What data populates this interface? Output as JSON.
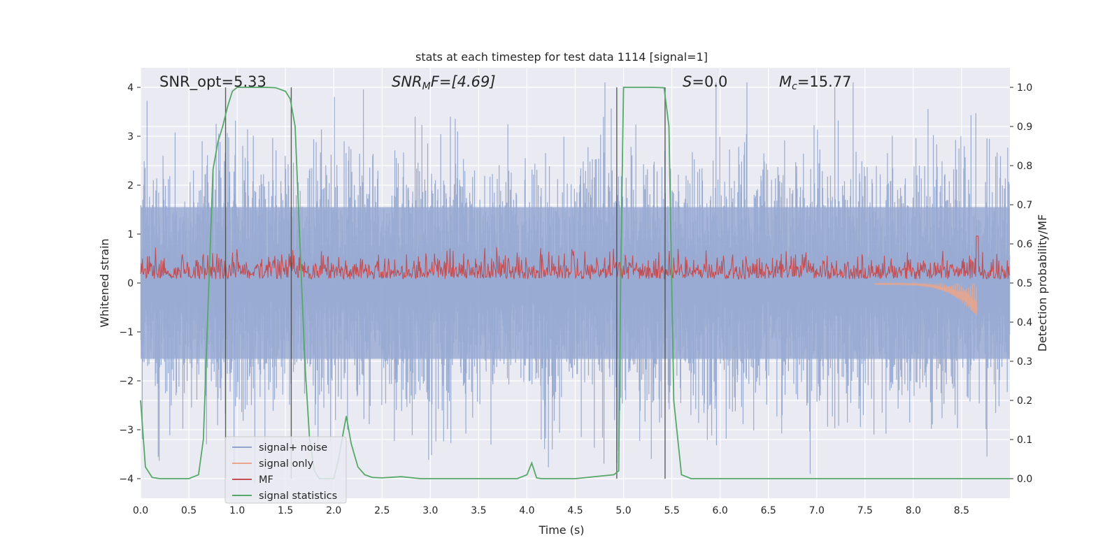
{
  "chart_data": {
    "type": "line",
    "title": "stats at each timestep for test data 1114 [signal=1]",
    "xlabel": "Time (s)",
    "ylabel_left": "Whitened strain",
    "ylabel_right": "Detection probability/MF",
    "xlim": [
      0,
      9.0
    ],
    "ylim_left": [
      -4.4,
      4.4
    ],
    "ylim_right": [
      -0.05,
      1.05
    ],
    "x_ticks": [
      "0.0",
      "0.5",
      "1.0",
      "1.5",
      "2.0",
      "2.5",
      "3.0",
      "3.5",
      "4.0",
      "4.5",
      "5.0",
      "5.5",
      "6.0",
      "6.5",
      "7.0",
      "7.5",
      "8.0",
      "8.5"
    ],
    "y_ticks_left": [
      "−4",
      "−3",
      "−2",
      "−1",
      "0",
      "1",
      "2",
      "3",
      "4"
    ],
    "y_ticks_right": [
      "0.0",
      "0.1",
      "0.2",
      "0.3",
      "0.4",
      "0.5",
      "0.6",
      "0.7",
      "0.8",
      "0.9",
      "1.0"
    ],
    "grid": true,
    "legend_location": "lower-left",
    "annotations": {
      "snr_opt": "SNR_opt=5.33",
      "snr_mf_main": "SNR",
      "snr_mf_sub": "M",
      "snr_mf_rest": "F=[4.69]",
      "s_main": "S",
      "s_rest": "=0.0",
      "mc_main": "M",
      "mc_sub": "c",
      "mc_rest": "=15.77"
    },
    "series": [
      {
        "name": "signal+ noise",
        "color": "#8fa3cc",
        "description_level": "noise band about ±1.6 with spikes up to ±4"
      },
      {
        "name": "signal only",
        "color": "#e8a58c",
        "chirp_end_time": 8.66,
        "chirp_min": -1.15
      },
      {
        "name": "MF",
        "color": "#c44e52",
        "baseline": 0.5,
        "peak_time": 8.66,
        "peak_value": 0.62
      },
      {
        "name": "signal statistics",
        "color": "#55a868",
        "x": [
          0.0,
          0.05,
          0.12,
          0.2,
          0.3,
          0.4,
          0.5,
          0.6,
          0.65,
          0.7,
          0.75,
          0.8,
          0.85,
          0.9,
          0.95,
          1.0,
          1.1,
          1.2,
          1.3,
          1.4,
          1.5,
          1.55,
          1.6,
          1.65,
          1.7,
          1.75,
          1.8,
          1.85,
          1.9,
          2.0,
          2.05,
          2.1,
          2.13,
          2.18,
          2.25,
          2.32,
          2.4,
          2.5,
          2.7,
          2.9,
          3.5,
          3.9,
          4.0,
          4.05,
          4.1,
          4.15,
          4.5,
          4.9,
          4.95,
          4.97,
          5.0,
          5.1,
          5.2,
          5.3,
          5.42,
          5.47,
          5.52,
          5.6,
          5.7,
          6.0,
          7.0,
          8.0,
          9.0
        ],
        "y": [
          0.2,
          0.03,
          0.003,
          0.0,
          0.0,
          0.0,
          0.0,
          0.01,
          0.1,
          0.45,
          0.79,
          0.86,
          0.9,
          0.95,
          0.99,
          1.0,
          1.0,
          1.0,
          1.0,
          0.999,
          0.99,
          0.97,
          0.9,
          0.6,
          0.3,
          0.1,
          0.02,
          0.0,
          0.0,
          0.0,
          0.05,
          0.12,
          0.16,
          0.09,
          0.03,
          0.01,
          0.003,
          0.002,
          0.005,
          0.0,
          0.0,
          0.0,
          0.01,
          0.04,
          0.002,
          0.0,
          0.0,
          0.01,
          0.02,
          0.5,
          1.0,
          1.0,
          1.0,
          1.0,
          0.999,
          0.9,
          0.2,
          0.01,
          0.0,
          0.0,
          0.0,
          0.0,
          0.0
        ]
      }
    ],
    "vertical_lines": [
      0.88,
      1.56,
      4.93,
      5.43
    ]
  }
}
